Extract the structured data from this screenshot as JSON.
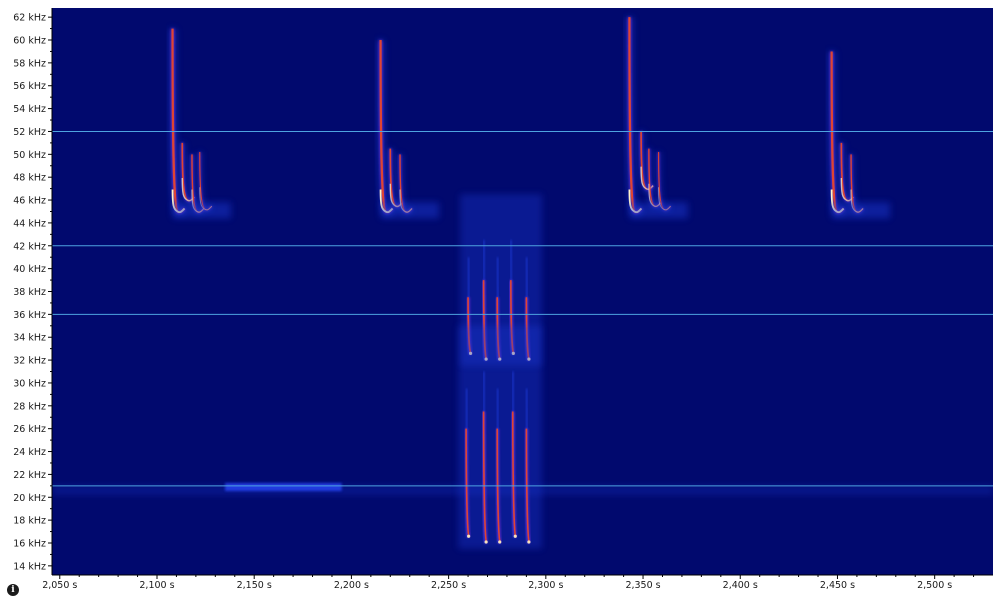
{
  "chart_data": {
    "type": "heatmap",
    "title": "",
    "xlabel": "",
    "ylabel": "",
    "xlim": [
      2.046,
      2.53
    ],
    "ylim": [
      13.2,
      62.8
    ],
    "x_ticks": [
      {
        "value": 2.05,
        "label": "2,050 s"
      },
      {
        "value": 2.1,
        "label": "2,100 s"
      },
      {
        "value": 2.15,
        "label": "2,150 s"
      },
      {
        "value": 2.2,
        "label": "2,200 s"
      },
      {
        "value": 2.25,
        "label": "2,250 s"
      },
      {
        "value": 2.3,
        "label": "2,300 s"
      },
      {
        "value": 2.35,
        "label": "2,350 s"
      },
      {
        "value": 2.4,
        "label": "2,400 s"
      },
      {
        "value": 2.45,
        "label": "2,450 s"
      },
      {
        "value": 2.5,
        "label": "2,500 s"
      }
    ],
    "y_ticks": [
      {
        "value": 14,
        "label": "14 kHz"
      },
      {
        "value": 16,
        "label": "16 kHz"
      },
      {
        "value": 18,
        "label": "18 kHz"
      },
      {
        "value": 20,
        "label": "20 kHz"
      },
      {
        "value": 22,
        "label": "22 kHz"
      },
      {
        "value": 24,
        "label": "24 kHz"
      },
      {
        "value": 26,
        "label": "26 kHz"
      },
      {
        "value": 28,
        "label": "28 kHz"
      },
      {
        "value": 30,
        "label": "30 kHz"
      },
      {
        "value": 32,
        "label": "32 kHz"
      },
      {
        "value": 34,
        "label": "34 kHz"
      },
      {
        "value": 36,
        "label": "36 kHz"
      },
      {
        "value": 38,
        "label": "38 kHz"
      },
      {
        "value": 40,
        "label": "40 kHz"
      },
      {
        "value": 42,
        "label": "42 kHz"
      },
      {
        "value": 44,
        "label": "44 kHz"
      },
      {
        "value": 46,
        "label": "46 kHz"
      },
      {
        "value": 48,
        "label": "48 kHz"
      },
      {
        "value": 50,
        "label": "50 kHz"
      },
      {
        "value": 52,
        "label": "52 kHz"
      },
      {
        "value": 54,
        "label": "54 kHz"
      },
      {
        "value": 56,
        "label": "56 kHz"
      },
      {
        "value": 58,
        "label": "58 kHz"
      },
      {
        "value": 60,
        "label": "60 kHz"
      },
      {
        "value": 62,
        "label": "62 kHz"
      }
    ],
    "reference_lines_khz": [
      52,
      42,
      36,
      21
    ],
    "background_band": {
      "f": 20.9,
      "t_start": 2.135,
      "t_end": 2.195
    },
    "calls": [
      {
        "t": 2.108,
        "f_start": 61.0,
        "f_end": 45.0,
        "echoes": [
          {
            "dt": 0.005,
            "f": 46.0
          },
          {
            "dt": 0.01,
            "f": 45.0
          },
          {
            "dt": 0.014,
            "f": 45.2
          }
        ]
      },
      {
        "t": 2.215,
        "f_start": 60.0,
        "f_end": 45.0,
        "echoes": [
          {
            "dt": 0.005,
            "f": 45.5
          },
          {
            "dt": 0.01,
            "f": 45.0
          }
        ]
      },
      {
        "t": 2.343,
        "f_start": 62.0,
        "f_end": 45.0,
        "echoes": [
          {
            "dt": 0.006,
            "f": 47.0
          },
          {
            "dt": 0.01,
            "f": 45.5
          },
          {
            "dt": 0.015,
            "f": 45.2
          }
        ]
      },
      {
        "t": 2.447,
        "f_start": 59.0,
        "f_end": 45.0,
        "echoes": [
          {
            "dt": 0.005,
            "f": 46.0
          },
          {
            "dt": 0.01,
            "f": 45.0
          }
        ]
      }
    ],
    "social_bursts": [
      {
        "times": [
          2.26,
          2.268,
          2.275,
          2.282,
          2.29
        ],
        "f_top": 37.5,
        "f_bottom": 32.5
      },
      {
        "times": [
          2.259,
          2.268,
          2.275,
          2.283,
          2.29
        ],
        "f_top": 26.0,
        "f_bottom": 16.5
      }
    ],
    "colors": {
      "background": "#01096e",
      "reference_line": "#4ea3e0",
      "faint": "#1d3bd6",
      "mid": "#6b2fd0",
      "hot": "#e8462a",
      "peak": "#fff3c9"
    }
  },
  "info_icon": {
    "glyph": "i",
    "name": "info-icon"
  }
}
